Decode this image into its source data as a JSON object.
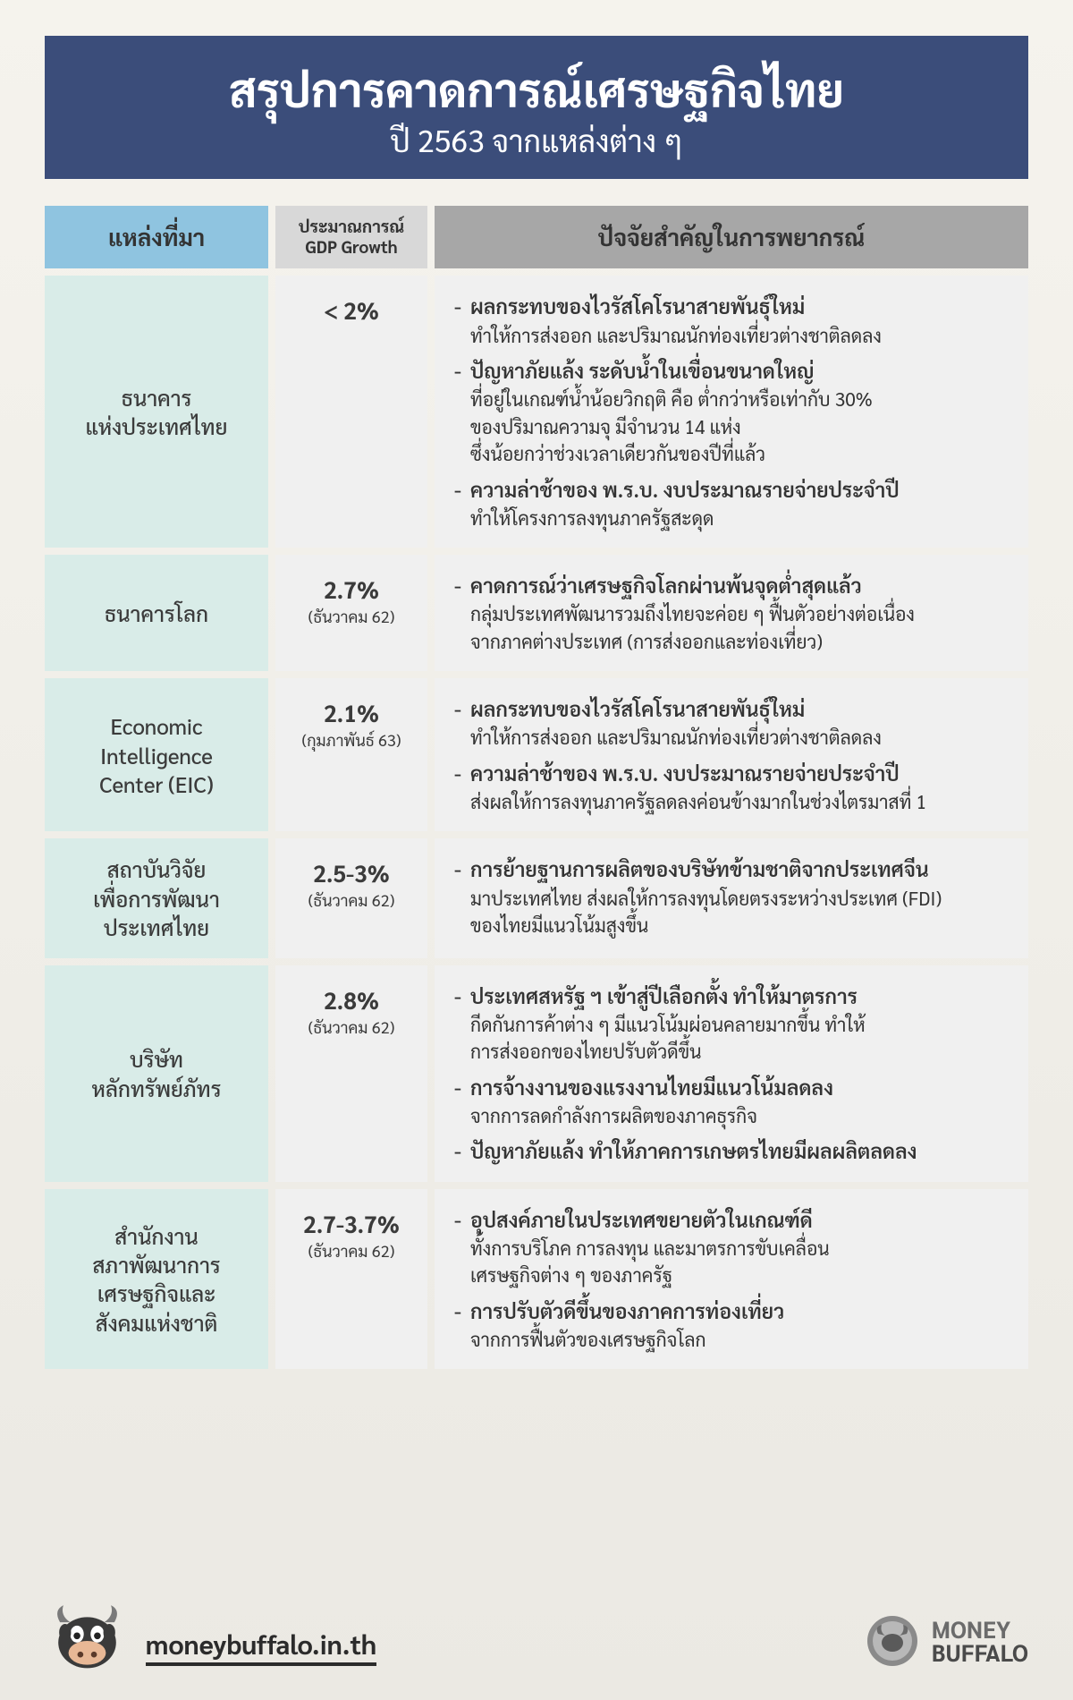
{
  "header": {
    "title": "สรุปการคาดการณ์เศรษฐกิจไทย",
    "subtitle": "ปี 2563 จากแหล่งต่าง ๆ"
  },
  "columns": {
    "source": "แหล่งที่มา",
    "gdp_line1": "ประมาณการณ์",
    "gdp_line2": "GDP Growth",
    "factors": "ปัจจัยสำคัญในการพยากรณ์"
  },
  "rows": [
    {
      "source": "ธนาคาร\nแห่งประเทศไทย",
      "gdp": "< 2%",
      "gdp_note": "",
      "factors": [
        {
          "main": "ผลกระทบของไวรัสโคโรนาสายพันธุ์ใหม่",
          "sub": "ทำให้การส่งออก และปริมาณนักท่องเที่ยวต่างชาติลดลง"
        },
        {
          "main": "ปัญหาภัยแล้ง ระดับน้ำในเขื่อนขนาดใหญ่",
          "sub": "ที่อยู่ในเกณฑ์น้ำน้อยวิกฤติ คือ ต่ำกว่าหรือเท่ากับ 30%\nของปริมาณความจุ มีจำนวน 14 แห่ง\nซึ่งน้อยกว่าช่วงเวลาเดียวกันของปีที่แล้ว"
        },
        {
          "main": "ความล่าช้าของ พ.ร.บ. งบประมาณรายจ่ายประจำปี",
          "sub": "ทำให้โครงการลงทุนภาครัฐสะดุด"
        }
      ]
    },
    {
      "source": "ธนาคารโลก",
      "gdp": "2.7%",
      "gdp_note": "(ธันวาคม 62)",
      "factors": [
        {
          "main": "คาดการณ์ว่าเศรษฐกิจโลกผ่านพ้นจุดต่ำสุดแล้ว",
          "sub": "กลุ่มประเทศพัฒนารวมถึงไทยจะค่อย ๆ ฟื้นตัวอย่างต่อเนื่อง\nจากภาคต่างประเทศ (การส่งออกและท่องเที่ยว)"
        }
      ]
    },
    {
      "source": "Economic\nIntelligence\nCenter (EIC)",
      "gdp": "2.1%",
      "gdp_note": "(กุมภาพันธ์ 63)",
      "factors": [
        {
          "main": "ผลกระทบของไวรัสโคโรนาสายพันธุ์ใหม่",
          "sub": "ทำให้การส่งออก และปริมาณนักท่องเที่ยวต่างชาติลดลง"
        },
        {
          "main": "ความล่าช้าของ พ.ร.บ. งบประมาณรายจ่ายประจำปี",
          "sub": "ส่งผลให้การลงทุนภาครัฐลดลงค่อนข้างมากในช่วงไตรมาสที่ 1"
        }
      ]
    },
    {
      "source": "สถาบันวิจัย\nเพื่อการพัฒนา\nประเทศไทย",
      "gdp": "2.5-3%",
      "gdp_note": "(ธันวาคม 62)",
      "factors": [
        {
          "main": "การย้ายฐานการผลิตของบริษัทข้ามชาติจากประเทศจีน",
          "sub": "มาประเทศไทย ส่งผลให้การลงทุนโดยตรงระหว่างประเทศ (FDI)\nของไทยมีแนวโน้มสูงขึ้น"
        }
      ]
    },
    {
      "source": "บริษัท\nหลักทรัพย์ภัทร",
      "gdp": "2.8%",
      "gdp_note": "(ธันวาคม 62)",
      "factors": [
        {
          "main": "ประเทศสหรัฐ ฯ เข้าสู่ปีเลือกตั้ง ทำให้มาตรการ",
          "sub": "กีดกันการค้าต่าง ๆ มีแนวโน้มผ่อนคลายมากขึ้น ทำให้\nการส่งออกของไทยปรับตัวดีขึ้น"
        },
        {
          "main": "การจ้างงานของแรงงานไทยมีแนวโน้มลดลง",
          "sub": "จากการลดกำลังการผลิตของภาคธุรกิจ"
        },
        {
          "main": "ปัญหาภัยแล้ง ทำให้ภาคการเกษตรไทยมีผลผลิตลดลง",
          "sub": ""
        }
      ]
    },
    {
      "source": "สำนักงาน\nสภาพัฒนาการ\nเศรษฐกิจและ\nสังคมแห่งชาติ",
      "gdp": "2.7-3.7%",
      "gdp_note": "(ธันวาคม 62)",
      "factors": [
        {
          "main": "อุปสงค์ภายในประเทศขยายตัวในเกณฑ์ดี",
          "sub": "ทั้งการบริโภค การลงทุน และมาตรการขับเคลื่อน\nเศรษฐกิจต่าง ๆ ของภาครัฐ"
        },
        {
          "main": "การปรับตัวดีขึ้นของภาคการท่องเที่ยว",
          "sub": "จากการฟื้นตัวของเศรษฐกิจโลก"
        }
      ]
    }
  ],
  "footer": {
    "url": "moneybuffalo.in.th",
    "brand_line1": "MONEY",
    "brand_line2": "BUFFALO"
  },
  "colors": {
    "header_band": "#3b4d7a",
    "ch_source": "#8fc4e0",
    "ch_gdp": "#d8d8d8",
    "ch_factors": "#a7a7a7",
    "cell_source": "#d9ece8",
    "cell_other": "#f0f0f0"
  }
}
